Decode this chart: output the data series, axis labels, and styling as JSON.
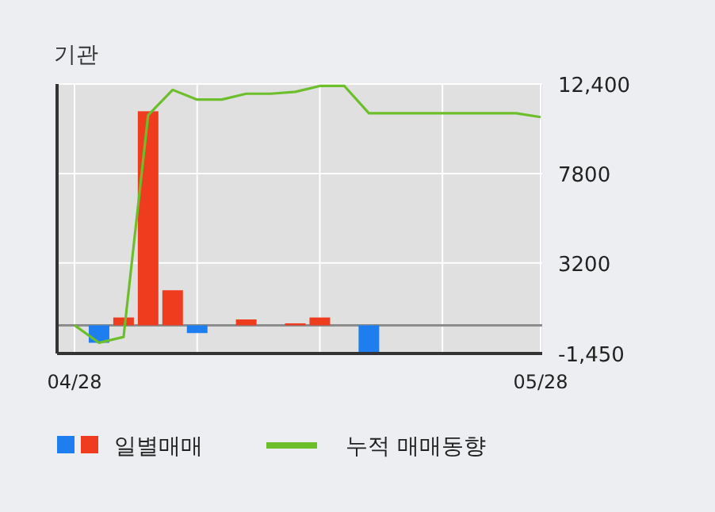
{
  "chart_data": {
    "type": "bar",
    "title": "기관",
    "categories": [
      "04/28",
      null,
      null,
      null,
      null,
      null,
      null,
      null,
      null,
      null,
      null,
      null,
      null,
      null,
      null,
      null,
      null,
      null,
      null,
      "05/28"
    ],
    "series": [
      {
        "name": "일별매매",
        "colors": [
          null,
          "#1e7ef0",
          "#f03c1e",
          "#f03c1e",
          "#f03c1e",
          "#1e7ef0",
          null,
          "#f03c1e",
          null,
          "#f03c1e",
          "#f03c1e",
          null,
          "#1e7ef0",
          null,
          null,
          null,
          null,
          null,
          null,
          null
        ],
        "values": [
          null,
          -900,
          400,
          11000,
          1800,
          -400,
          null,
          300,
          null,
          100,
          400,
          null,
          -1400,
          null,
          null,
          null,
          null,
          null,
          null,
          null
        ]
      },
      {
        "name": "누적 매매동향",
        "type": "line",
        "color": "#6cbf2a",
        "values": [
          0,
          -900,
          -600,
          10800,
          12100,
          11600,
          11600,
          11900,
          11900,
          12000,
          12300,
          12300,
          10900,
          10900,
          10900,
          10900,
          10900,
          10900,
          10900,
          10700
        ]
      }
    ],
    "ylim": [
      -1450,
      12400
    ],
    "yticks": [
      {
        "value": 12400,
        "label": "12,400"
      },
      7800,
      3200,
      {
        "value": -1450,
        "label": "-1,450"
      }
    ],
    "ref_lines": [
      {
        "axis": "y",
        "value": 0,
        "color": "#8c8c8c"
      }
    ],
    "grid": true,
    "legend": "bottom"
  }
}
